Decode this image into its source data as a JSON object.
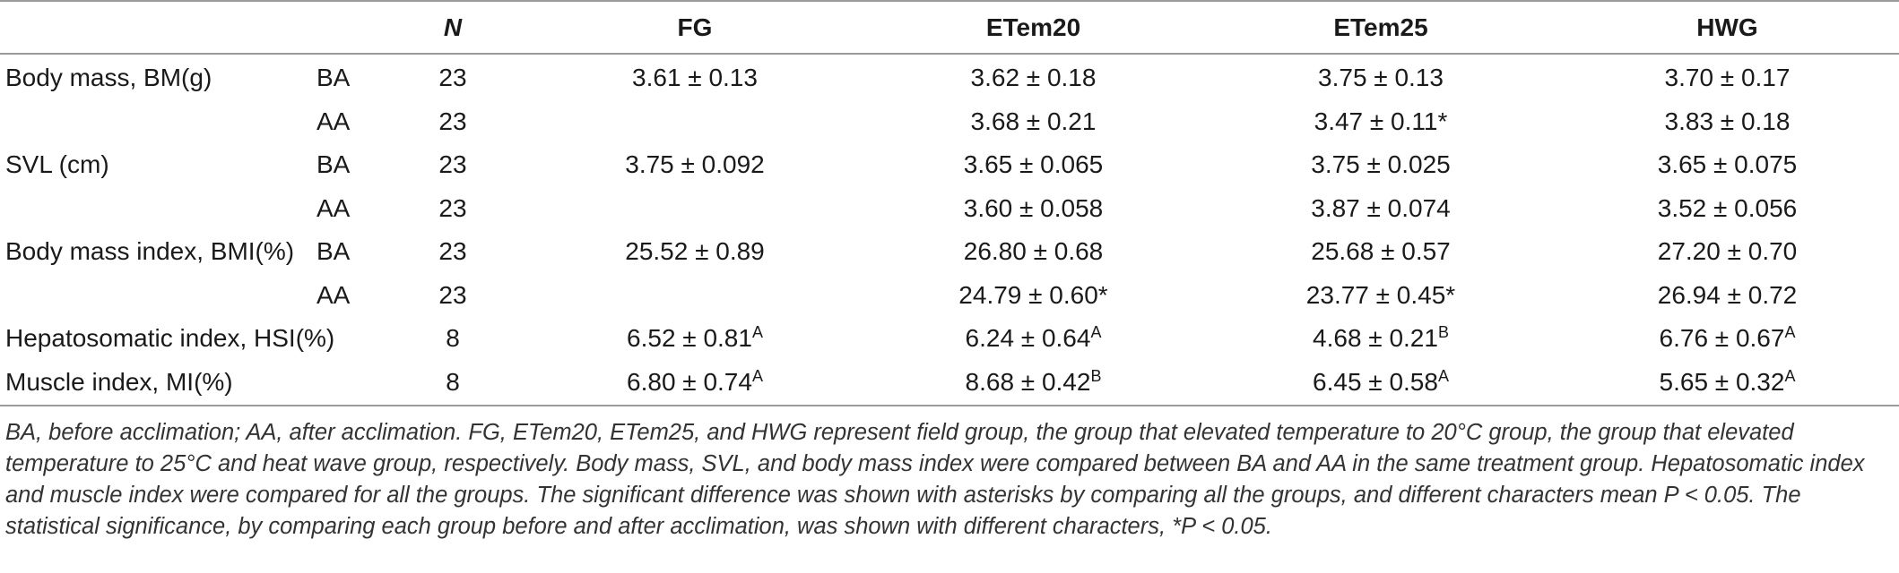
{
  "table": {
    "columns": [
      "",
      "",
      "N",
      "FG",
      "ETem20",
      "ETem25",
      "HWG"
    ],
    "rows": [
      {
        "label": "Body mass, BM(g)",
        "stage": "BA",
        "n": "23",
        "fg": "3.61 ± 0.13",
        "fg_sup": "",
        "etem20": "3.62 ± 0.18",
        "etem20_sup": "",
        "etem25": "3.75 ± 0.13",
        "etem25_sup": "",
        "hwg": "3.70 ± 0.17",
        "hwg_sup": ""
      },
      {
        "label": "",
        "stage": "AA",
        "n": "23",
        "fg": "",
        "fg_sup": "",
        "etem20": "3.68 ± 0.21",
        "etem20_sup": "",
        "etem25": "3.47 ± 0.11*",
        "etem25_sup": "",
        "hwg": "3.83 ± 0.18",
        "hwg_sup": ""
      },
      {
        "label": "SVL (cm)",
        "stage": "BA",
        "n": "23",
        "fg": "3.75 ± 0.092",
        "fg_sup": "",
        "etem20": "3.65 ± 0.065",
        "etem20_sup": "",
        "etem25": "3.75 ± 0.025",
        "etem25_sup": "",
        "hwg": "3.65 ± 0.075",
        "hwg_sup": ""
      },
      {
        "label": "",
        "stage": "AA",
        "n": "23",
        "fg": "",
        "fg_sup": "",
        "etem20": "3.60 ± 0.058",
        "etem20_sup": "",
        "etem25": "3.87 ± 0.074",
        "etem25_sup": "",
        "hwg": "3.52 ± 0.056",
        "hwg_sup": ""
      },
      {
        "label": "Body mass index, BMI(%)",
        "stage": "BA",
        "n": "23",
        "fg": "25.52 ± 0.89",
        "fg_sup": "",
        "etem20": "26.80 ± 0.68",
        "etem20_sup": "",
        "etem25": "25.68 ± 0.57",
        "etem25_sup": "",
        "hwg": "27.20 ± 0.70",
        "hwg_sup": ""
      },
      {
        "label": "",
        "stage": "AA",
        "n": "23",
        "fg": "",
        "fg_sup": "",
        "etem20": "24.79 ± 0.60*",
        "etem20_sup": "",
        "etem25": "23.77 ± 0.45*",
        "etem25_sup": "",
        "hwg": "26.94 ± 0.72",
        "hwg_sup": ""
      },
      {
        "label": "Hepatosomatic index, HSI(%)",
        "stage": "",
        "n": "8",
        "fg": "6.52 ± 0.81",
        "fg_sup": "A",
        "etem20": "6.24 ± 0.64",
        "etem20_sup": "A",
        "etem25": "4.68 ± 0.21",
        "etem25_sup": "B",
        "hwg": "6.76 ± 0.67",
        "hwg_sup": "A"
      },
      {
        "label": "Muscle index, MI(%)",
        "stage": "",
        "n": "8",
        "fg": "6.80 ± 0.74",
        "fg_sup": "A",
        "etem20": "8.68 ± 0.42",
        "etem20_sup": "B",
        "etem25": "6.45 ± 0.58",
        "etem25_sup": "A",
        "hwg": "5.65 ± 0.32",
        "hwg_sup": "A"
      }
    ]
  },
  "footnote": "BA, before acclimation; AA, after acclimation. FG, ETem20, ETem25, and HWG represent field group, the group that elevated temperature to 20°C group, the group that elevated temperature to 25°C and heat wave group, respectively. Body mass, SVL, and body mass index were compared between BA and AA in the same treatment group. Hepatosomatic index and muscle index were compared for all the groups. The significant difference was shown with asterisks by comparing all the groups, and different characters mean P < 0.05. The statistical significance, by comparing each group before and after acclimation, was shown with different characters, *P < 0.05."
}
